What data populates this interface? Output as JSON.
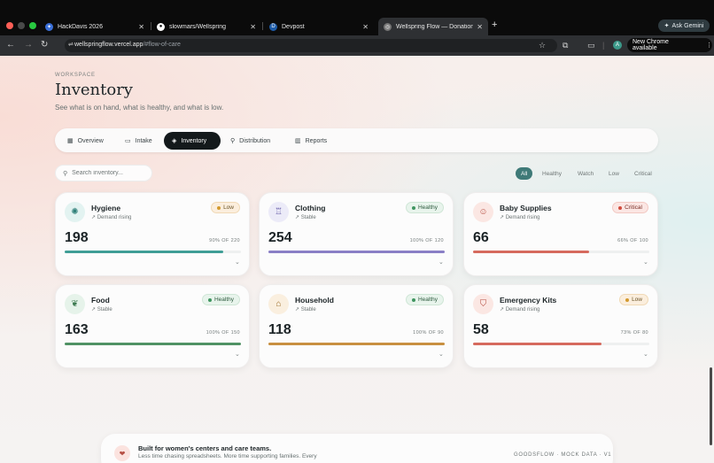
{
  "browser": {
    "tabs": [
      {
        "label": "HackDavis 2026",
        "icon": "hackdavis-icon"
      },
      {
        "label": "slowmars/Wellspring",
        "icon": "github-icon"
      },
      {
        "label": "Devpost",
        "icon": "devpost-icon"
      },
      {
        "label": "Wellspring Flow — Donations",
        "icon": "globe-icon",
        "active": true
      }
    ],
    "ask_gemini": "Ask Gemini",
    "url_domain": "wellspringflow.vercel.app",
    "url_path": "/#flow-of-care",
    "avatar_letter": "A",
    "new_chrome": "New Chrome available"
  },
  "header": {
    "eyebrow": "WORKSPACE",
    "title": "Inventory",
    "subtitle": "See what is on hand, what is healthy, and what is low."
  },
  "nav": [
    {
      "label": "Overview",
      "icon": "grid-icon"
    },
    {
      "label": "Intake",
      "icon": "inbox-icon"
    },
    {
      "label": "Inventory",
      "icon": "box-icon",
      "active": true
    },
    {
      "label": "Distribution",
      "icon": "share-icon"
    },
    {
      "label": "Reports",
      "icon": "bar-chart-icon"
    }
  ],
  "search": {
    "placeholder": "Search inventory..."
  },
  "filters": [
    {
      "label": "All",
      "active": true
    },
    {
      "label": "Healthy"
    },
    {
      "label": "Watch"
    },
    {
      "label": "Low"
    },
    {
      "label": "Critical"
    }
  ],
  "cards": [
    {
      "name": "Hygiene",
      "trend": "Demand rising",
      "status": "Low",
      "status_class": "low",
      "count": "198",
      "capacity_text": "90% OF 220",
      "fill_fraction": 0.9,
      "bar_color": "#3f9e96",
      "icon": "sparkle-icon",
      "icon_bg": "#e3f3f1",
      "icon_color": "#2e7f78"
    },
    {
      "name": "Clothing",
      "trend": "Stable",
      "status": "Healthy",
      "status_class": "healthy",
      "count": "254",
      "capacity_text": "100% OF 120",
      "fill_fraction": 1.0,
      "bar_color": "#8a7fc6",
      "icon": "shirt-icon",
      "icon_bg": "#ecebf8",
      "icon_color": "#5e55a3"
    },
    {
      "name": "Baby Supplies",
      "trend": "Demand rising",
      "status": "Critical",
      "status_class": "critical",
      "count": "66",
      "capacity_text": "66% OF 100",
      "fill_fraction": 0.66,
      "bar_color": "#d66a5e",
      "icon": "smiley-icon",
      "icon_bg": "#fbe7e3",
      "icon_color": "#b3493c"
    },
    {
      "name": "Food",
      "trend": "Stable",
      "status": "Healthy",
      "status_class": "healthy",
      "count": "163",
      "capacity_text": "100% OF 150",
      "fill_fraction": 1.0,
      "bar_color": "#4f9264",
      "icon": "apple-icon",
      "icon_bg": "#e6f3ea",
      "icon_color": "#3c7a50"
    },
    {
      "name": "Household",
      "trend": "Stable",
      "status": "Healthy",
      "status_class": "healthy",
      "count": "118",
      "capacity_text": "100% OF 90",
      "fill_fraction": 1.0,
      "bar_color": "#c89040",
      "icon": "home-icon",
      "icon_bg": "#faefdf",
      "icon_color": "#9a6a24"
    },
    {
      "name": "Emergency Kits",
      "trend": "Demand rising",
      "status": "Low",
      "status_class": "low",
      "count": "58",
      "capacity_text": "73% OF 80",
      "fill_fraction": 0.73,
      "bar_color": "#d66a5e",
      "icon": "shield-icon",
      "icon_bg": "#fbe7e3",
      "icon_color": "#b3493c"
    }
  ],
  "footer": {
    "title": "Built for women's centers and care teams.",
    "subtitle": "Less time chasing spreadsheets. More time supporting families. Every",
    "meta": "GOODSFLOW · MOCK DATA · V1",
    "icon": "heart-hand-icon"
  }
}
